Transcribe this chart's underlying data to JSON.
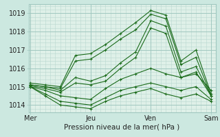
{
  "bg_color": "#cce8e0",
  "plot_bg_color": "#dff0e8",
  "grid_minor_color": "#b8d8d0",
  "grid_major_color": "#a0c8c0",
  "line_color": "#1a6b1a",
  "xlabel": "Pression niveau de la mer( hPa )",
  "xlabel_fontsize": 7.5,
  "yticks": [
    1014,
    1015,
    1016,
    1017,
    1018,
    1019
  ],
  "ymin": 1013.6,
  "ymax": 1019.5,
  "xtick_labels": [
    "Mer",
    "Jeu",
    "Ven",
    "Sam"
  ],
  "xtick_positions": [
    0.0,
    2.0,
    4.0,
    6.0
  ],
  "lines": [
    {
      "x": [
        0.0,
        0.5,
        1.0,
        1.5,
        2.0,
        2.5,
        3.0,
        3.5,
        4.0,
        4.5,
        5.0,
        5.5,
        6.0
      ],
      "y": [
        1015.2,
        1015.1,
        1015.0,
        1016.7,
        1016.8,
        1017.3,
        1017.9,
        1018.5,
        1019.15,
        1018.9,
        1016.4,
        1017.0,
        1014.6
      ]
    },
    {
      "x": [
        0.0,
        0.5,
        1.0,
        1.5,
        2.0,
        2.5,
        3.0,
        3.5,
        4.0,
        4.5,
        5.0,
        5.5,
        6.0
      ],
      "y": [
        1015.1,
        1015.0,
        1014.9,
        1016.4,
        1016.5,
        1017.0,
        1017.6,
        1018.1,
        1018.95,
        1018.7,
        1016.2,
        1016.6,
        1014.5
      ]
    },
    {
      "x": [
        0.0,
        0.5,
        1.0,
        1.5,
        2.0,
        2.5,
        3.0,
        3.5,
        4.0,
        4.5,
        5.0,
        5.5,
        6.0
      ],
      "y": [
        1015.1,
        1015.0,
        1014.8,
        1015.5,
        1015.3,
        1015.6,
        1016.3,
        1016.9,
        1018.6,
        1018.3,
        1015.8,
        1016.1,
        1014.5
      ]
    },
    {
      "x": [
        0.0,
        0.5,
        1.0,
        1.5,
        2.0,
        2.5,
        3.0,
        3.5,
        4.0,
        4.5,
        5.0,
        5.5,
        6.0
      ],
      "y": [
        1015.05,
        1014.9,
        1014.7,
        1015.2,
        1015.1,
        1015.3,
        1016.0,
        1016.6,
        1018.2,
        1017.9,
        1015.5,
        1015.8,
        1014.5
      ]
    },
    {
      "x": [
        0.0,
        0.5,
        1.0,
        1.5,
        2.0,
        2.5,
        3.0,
        3.5,
        4.0,
        4.5,
        5.0,
        5.5,
        6.0
      ],
      "y": [
        1015.0,
        1014.8,
        1014.5,
        1014.4,
        1014.3,
        1014.9,
        1015.4,
        1015.7,
        1016.0,
        1015.7,
        1015.5,
        1015.7,
        1014.8
      ]
    },
    {
      "x": [
        0.0,
        0.5,
        1.0,
        1.5,
        2.0,
        2.5,
        3.0,
        3.5,
        4.0,
        4.5,
        5.0,
        5.5,
        6.0
      ],
      "y": [
        1015.0,
        1014.6,
        1014.2,
        1014.1,
        1014.0,
        1014.4,
        1014.8,
        1015.0,
        1015.2,
        1015.0,
        1014.8,
        1015.0,
        1014.3
      ]
    },
    {
      "x": [
        0.0,
        0.5,
        1.0,
        1.5,
        2.0,
        2.5,
        3.0,
        3.5,
        4.0,
        4.5,
        5.0,
        5.5,
        6.0
      ],
      "y": [
        1015.0,
        1014.5,
        1014.0,
        1013.9,
        1013.8,
        1014.2,
        1014.5,
        1014.7,
        1014.9,
        1014.6,
        1014.4,
        1014.6,
        1014.2
      ]
    }
  ]
}
